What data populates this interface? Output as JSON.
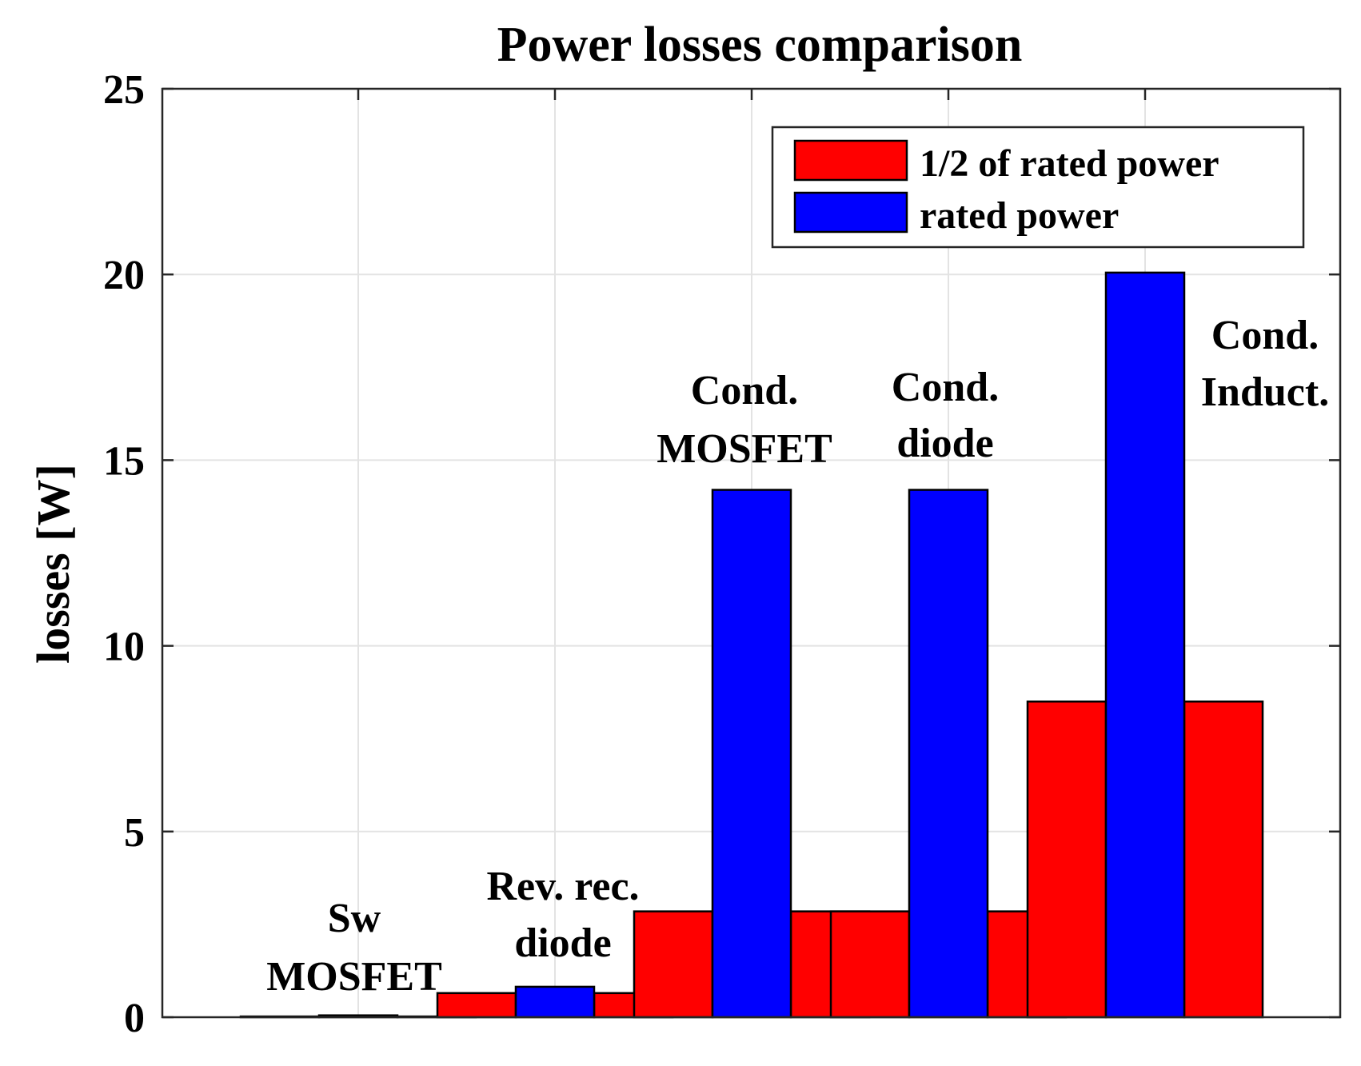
{
  "chart_data": {
    "type": "bar",
    "title": "Power losses comparison",
    "xlabel": "",
    "ylabel": "losses [W]",
    "ylim": [
      0,
      25
    ],
    "yticks": [
      "0",
      "5",
      "10",
      "15",
      "20",
      "25"
    ],
    "grid": true,
    "legend_position": "top-right",
    "categories": [
      "Sw MOSFET",
      "Rev. rec. diode",
      "Cond. MOSFET",
      "Cond. diode",
      "Cond. Induct."
    ],
    "category_annotations": [
      [
        "Sw",
        "MOSFET"
      ],
      [
        "Rev. rec.",
        "diode"
      ],
      [
        "Cond.",
        "MOSFET"
      ],
      [
        "Cond.",
        "diode"
      ],
      [
        "Cond.",
        "Induct."
      ]
    ],
    "series": [
      {
        "name": "1/2 of rated power",
        "color": "#ff0000",
        "values": [
          0.02,
          0.65,
          2.85,
          2.85,
          8.5
        ]
      },
      {
        "name": "rated power",
        "color": "#0000ff",
        "values": [
          0.05,
          0.82,
          14.2,
          14.2,
          20.05
        ]
      }
    ]
  }
}
